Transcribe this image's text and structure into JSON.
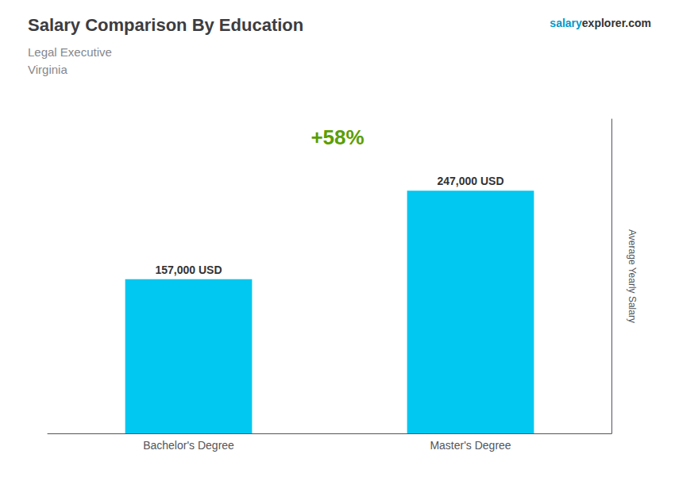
{
  "chart_data": {
    "type": "bar",
    "title": "Salary Comparison By Education",
    "subtitle": [
      "Legal Executive",
      "Virginia"
    ],
    "categories": [
      "Bachelor's Degree",
      "Master's Degree"
    ],
    "values": [
      157000,
      247000
    ],
    "value_labels": [
      "157,000 USD",
      "247,000 USD"
    ],
    "data_labels": true,
    "color": "#00c8f0",
    "ylabel": "Average Yearly Salary",
    "annotations": [
      "+58%",
      "salary",
      "explorer.com"
    ],
    "ylim": [
      0,
      320000
    ],
    "tick_labels": false,
    "grid": false
  }
}
